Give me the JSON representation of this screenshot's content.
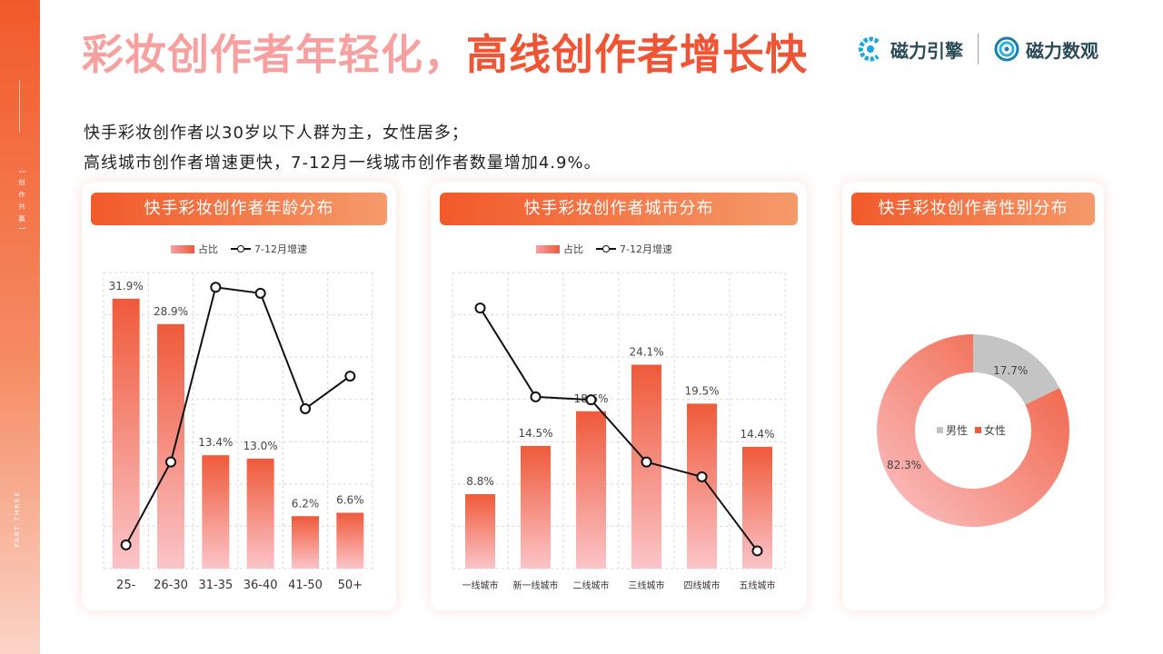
{
  "side": {
    "tag": "[ 创 作 共 赢 ]",
    "part": "PART THREE"
  },
  "title": {
    "part1": "彩妆创作者年轻化，",
    "part2": "高线创作者增长快"
  },
  "logos": {
    "brand1": "磁力引擎",
    "brand2": "磁力数观"
  },
  "intro": {
    "line1": "快手彩妆创作者以30岁以下人群为主，女性居多；",
    "line2": "高线城市创作者增速更快，7-12月一线城市创作者数量增加4.9%。"
  },
  "colors": {
    "accent": "#ef5534",
    "bar_top": "#ef5a3a",
    "bar_bottom": "#fbc4c8",
    "male": "#c4c4c4"
  },
  "chart_data": [
    {
      "type": "bar",
      "title": "快手彩妆创作者年龄分布",
      "legend": {
        "bar": "占比",
        "line": "7-12月增速",
        "position": "top"
      },
      "categories": [
        "25-",
        "26-30",
        "31-35",
        "36-40",
        "41-50",
        "50+"
      ],
      "series": [
        {
          "name": "占比",
          "type": "bar",
          "values": [
            31.9,
            28.9,
            13.4,
            13.0,
            6.2,
            6.6
          ],
          "labels": [
            "31.9%",
            "28.9%",
            "13.4%",
            "13.0%",
            "6.2%",
            "6.6%"
          ]
        },
        {
          "name": "7-12月增速",
          "type": "line",
          "values": [
            0.08,
            0.36,
            0.95,
            0.93,
            0.54,
            0.65
          ]
        }
      ],
      "ylim": [
        0,
        35
      ],
      "grid": true
    },
    {
      "type": "bar",
      "title": "快手彩妆创作者城市分布",
      "legend": {
        "bar": "占比",
        "line": "7-12月增速",
        "position": "top"
      },
      "categories": [
        "一线城市",
        "新一线城市",
        "二线城市",
        "三线城市",
        "四线城市",
        "五线城市"
      ],
      "series": [
        {
          "name": "占比",
          "type": "bar",
          "values": [
            8.8,
            14.5,
            18.6,
            24.1,
            19.5,
            14.4
          ],
          "labels": [
            "8.8%",
            "14.5%",
            "18.6%",
            "24.1%",
            "19.5%",
            "14.4%"
          ]
        },
        {
          "name": "7-12月增速",
          "type": "line",
          "values": [
            0.88,
            0.58,
            0.57,
            0.36,
            0.31,
            0.06
          ]
        }
      ],
      "ylim": [
        0,
        35
      ],
      "grid": true
    },
    {
      "type": "pie",
      "donut": true,
      "title": "快手彩妆创作者性别分布",
      "categories": [
        "男性",
        "女性"
      ],
      "values": [
        17.7,
        82.3
      ],
      "labels": [
        "17.7%",
        "82.3%"
      ],
      "legend_position": "center"
    }
  ]
}
